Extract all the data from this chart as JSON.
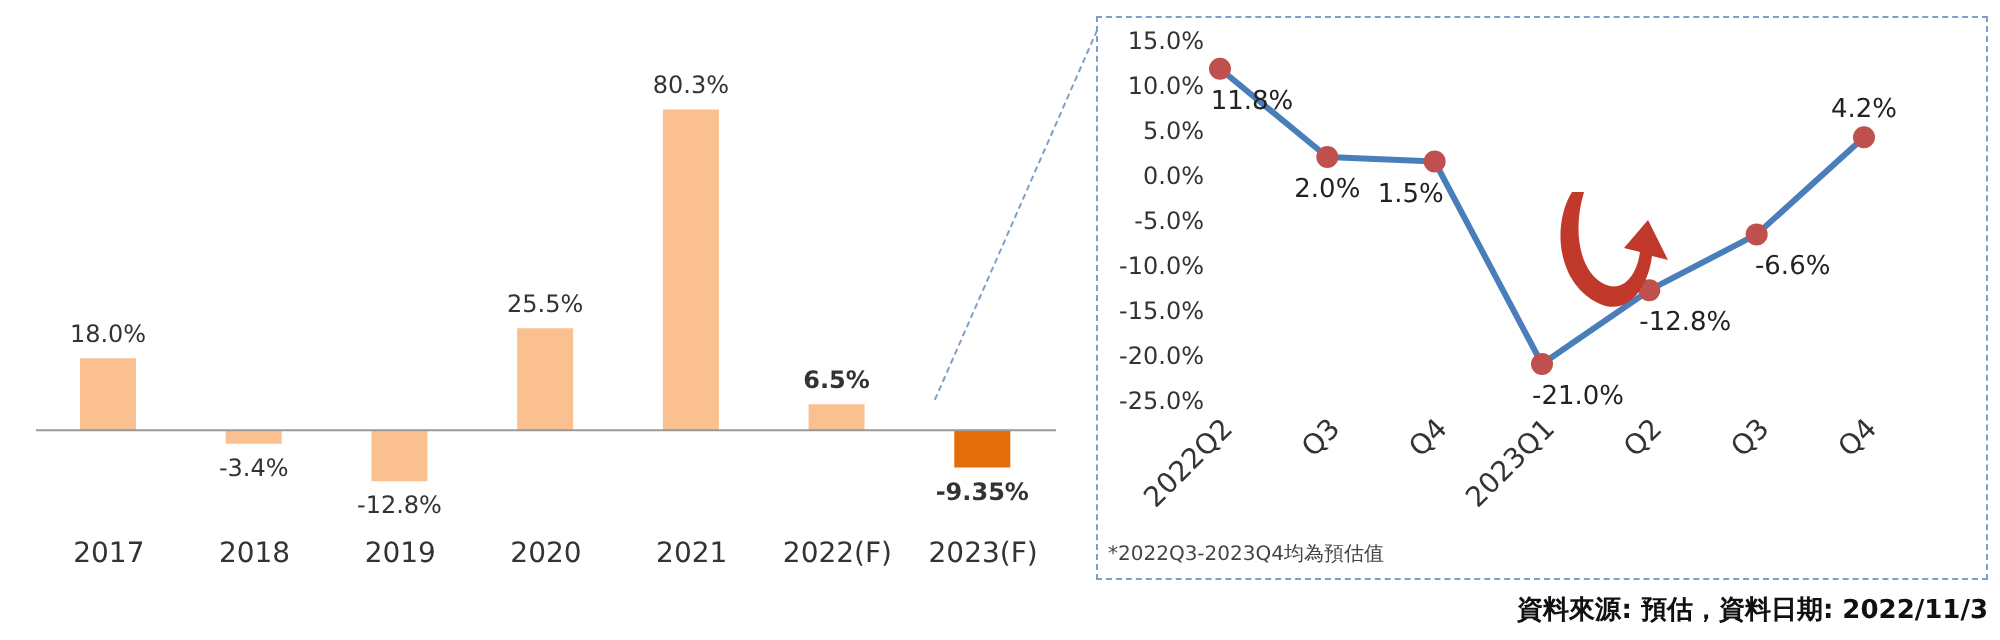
{
  "chart_data": [
    {
      "type": "bar",
      "categories": [
        "2017",
        "2018",
        "2019",
        "2020",
        "2021",
        "2022(F)",
        "2023(F)"
      ],
      "values": [
        18.0,
        -3.4,
        -12.8,
        25.5,
        80.3,
        6.5,
        -9.35
      ],
      "colors": [
        "#fac090",
        "#fac090",
        "#fac090",
        "#fac090",
        "#fac090",
        "#fac090",
        "#e46c0a"
      ],
      "value_labels": [
        "18.0%",
        "-3.4%",
        "-12.8%",
        "25.5%",
        "80.3%",
        "6.5%",
        "-9.35%"
      ]
    },
    {
      "type": "line",
      "categories": [
        "2022Q2",
        "Q3",
        "Q4",
        "2023Q1",
        "Q2",
        "Q3",
        "Q4"
      ],
      "series": [
        {
          "color": "#4a7ebb",
          "values": [
            11.8,
            2.0,
            1.5,
            -21.0,
            -12.8,
            -6.6,
            4.2
          ],
          "value_labels": [
            "11.8%",
            "2.0%",
            "1.5%",
            "-21.0%",
            "-12.8%",
            "-6.6%",
            "4.2%"
          ]
        }
      ],
      "marker": "circle",
      "ylim": [
        -25,
        15
      ],
      "yticks": [
        {
          "value": -25,
          "label": "-25.0%"
        },
        {
          "value": -20,
          "label": "-20.0%"
        },
        {
          "value": -15,
          "label": "-15.0%"
        },
        {
          "value": -10,
          "label": "-10.0%"
        },
        {
          "value": -5,
          "label": "-5.0%"
        },
        {
          "value": 0,
          "label": "0.0%"
        },
        {
          "value": 5,
          "label": "5.0%"
        },
        {
          "value": 10,
          "label": "10.0%"
        },
        {
          "value": 15,
          "label": "15.0%"
        }
      ],
      "annotations": [
        "*2022Q3-2023Q4均為預估值",
        "資料來源: 預估，資料日期: 2022/11/3"
      ]
    }
  ]
}
